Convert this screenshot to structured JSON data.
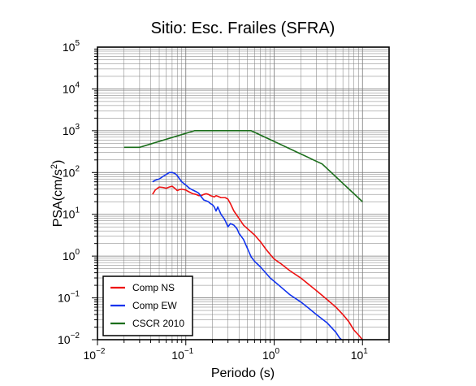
{
  "chart_data": {
    "type": "line",
    "title": "Sitio: Esc. Frailes (SFRA)",
    "xlabel": "Periodo (s)",
    "ylabel": {
      "base": "PSA(cm/s",
      "sup": "2",
      "close": ")"
    },
    "xscale": "log",
    "yscale": "log",
    "xlim": [
      0.01,
      20
    ],
    "ylim": [
      0.01,
      100000
    ],
    "x_ticks": [
      {
        "base": "10",
        "exp": "−2",
        "value": 0.01
      },
      {
        "base": "10",
        "exp": "−1",
        "value": 0.1
      },
      {
        "base": "10",
        "exp": "0",
        "value": 1
      },
      {
        "base": "10",
        "exp": "1",
        "value": 10
      }
    ],
    "y_ticks": [
      {
        "base": "10",
        "exp": "−2",
        "value": 0.01
      },
      {
        "base": "10",
        "exp": "−1",
        "value": 0.1
      },
      {
        "base": "10",
        "exp": "0",
        "value": 1
      },
      {
        "base": "10",
        "exp": "1",
        "value": 10
      },
      {
        "base": "10",
        "exp": "2",
        "value": 100
      },
      {
        "base": "10",
        "exp": "3",
        "value": 1000
      },
      {
        "base": "10",
        "exp": "4",
        "value": 10000
      },
      {
        "base": "10",
        "exp": "5",
        "value": 100000
      }
    ],
    "grid": true,
    "legend_position": "bottom-left",
    "series": [
      {
        "name": "Comp NS",
        "color": "#ee1111",
        "points": [
          [
            0.042,
            30
          ],
          [
            0.045,
            38
          ],
          [
            0.05,
            45
          ],
          [
            0.055,
            44
          ],
          [
            0.06,
            42
          ],
          [
            0.065,
            45
          ],
          [
            0.07,
            47
          ],
          [
            0.075,
            42
          ],
          [
            0.08,
            37
          ],
          [
            0.085,
            39
          ],
          [
            0.09,
            40
          ],
          [
            0.1,
            38
          ],
          [
            0.11,
            34
          ],
          [
            0.12,
            31
          ],
          [
            0.13,
            30
          ],
          [
            0.14,
            28
          ],
          [
            0.15,
            28
          ],
          [
            0.16,
            30
          ],
          [
            0.17,
            31
          ],
          [
            0.18,
            30
          ],
          [
            0.19,
            28
          ],
          [
            0.2,
            27
          ],
          [
            0.21,
            26
          ],
          [
            0.22,
            28
          ],
          [
            0.23,
            27
          ],
          [
            0.25,
            25
          ],
          [
            0.28,
            25
          ],
          [
            0.3,
            23
          ],
          [
            0.32,
            18
          ],
          [
            0.35,
            12
          ],
          [
            0.4,
            8
          ],
          [
            0.45,
            5.5
          ],
          [
            0.5,
            4.5
          ],
          [
            0.6,
            3.2
          ],
          [
            0.7,
            2.2
          ],
          [
            0.8,
            1.5
          ],
          [
            0.9,
            1.1
          ],
          [
            1.0,
            0.85
          ],
          [
            1.2,
            0.65
          ],
          [
            1.5,
            0.45
          ],
          [
            2.0,
            0.3
          ],
          [
            3.0,
            0.15
          ],
          [
            4.0,
            0.09
          ],
          [
            5.0,
            0.06
          ],
          [
            6.0,
            0.04
          ],
          [
            7.0,
            0.027
          ],
          [
            8.0,
            0.017
          ],
          [
            9.0,
            0.013
          ],
          [
            10.0,
            0.01
          ]
        ]
      },
      {
        "name": "Comp EW",
        "color": "#1133ee",
        "points": [
          [
            0.042,
            60
          ],
          [
            0.045,
            65
          ],
          [
            0.05,
            70
          ],
          [
            0.055,
            80
          ],
          [
            0.06,
            90
          ],
          [
            0.065,
            100
          ],
          [
            0.07,
            100
          ],
          [
            0.075,
            95
          ],
          [
            0.08,
            85
          ],
          [
            0.085,
            70
          ],
          [
            0.09,
            60
          ],
          [
            0.1,
            50
          ],
          [
            0.11,
            42
          ],
          [
            0.12,
            38
          ],
          [
            0.13,
            35
          ],
          [
            0.14,
            32
          ],
          [
            0.15,
            26
          ],
          [
            0.16,
            22
          ],
          [
            0.17,
            21
          ],
          [
            0.18,
            20
          ],
          [
            0.19,
            18
          ],
          [
            0.2,
            17
          ],
          [
            0.21,
            15
          ],
          [
            0.22,
            12
          ],
          [
            0.23,
            15
          ],
          [
            0.25,
            10
          ],
          [
            0.27,
            8
          ],
          [
            0.28,
            7
          ],
          [
            0.3,
            5
          ],
          [
            0.32,
            6
          ],
          [
            0.35,
            5.5
          ],
          [
            0.38,
            4.5
          ],
          [
            0.4,
            3.5
          ],
          [
            0.45,
            2.5
          ],
          [
            0.5,
            1.5
          ],
          [
            0.55,
            0.95
          ],
          [
            0.6,
            0.75
          ],
          [
            0.7,
            0.55
          ],
          [
            0.8,
            0.4
          ],
          [
            0.9,
            0.3
          ],
          [
            1.0,
            0.25
          ],
          [
            1.2,
            0.18
          ],
          [
            1.5,
            0.12
          ],
          [
            2.0,
            0.08
          ],
          [
            2.5,
            0.055
          ],
          [
            3.0,
            0.04
          ],
          [
            4.0,
            0.025
          ],
          [
            5.0,
            0.015
          ],
          [
            5.5,
            0.011
          ],
          [
            5.8,
            0.01
          ]
        ]
      },
      {
        "name": "CSCR 2010",
        "color": "#1b6e1b",
        "points": [
          [
            0.02,
            400
          ],
          [
            0.03,
            400
          ],
          [
            0.125,
            1000
          ],
          [
            0.55,
            1000
          ],
          [
            3.5,
            160
          ],
          [
            10.0,
            20
          ]
        ]
      }
    ]
  }
}
